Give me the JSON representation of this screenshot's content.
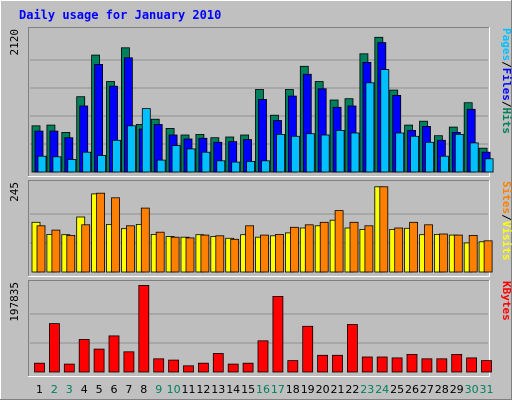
{
  "chart_data": {
    "type": "bar",
    "title": "Daily usage for January 2010",
    "days": [
      "1",
      "2",
      "3",
      "4",
      "5",
      "6",
      "7",
      "8",
      "9",
      "10",
      "11",
      "12",
      "13",
      "14",
      "15",
      "16",
      "17",
      "18",
      "19",
      "20",
      "21",
      "22",
      "23",
      "24",
      "25",
      "26",
      "27",
      "28",
      "29",
      "30",
      "31"
    ],
    "weekend_days": [
      "2",
      "3",
      "9",
      "10",
      "16",
      "17",
      "23",
      "24",
      "30",
      "31"
    ],
    "colors": {
      "hits": "#00805c",
      "files": "#0000ff",
      "pages": "#00c0ff",
      "visits": "#ffff00",
      "sites": "#ff8000",
      "kbytes": "#ff0000",
      "title": "#0000ff",
      "weekday_label": "#000000",
      "weekend_label": "#00805c",
      "background": "#c0c0c0",
      "plot_background": "#bebebe"
    },
    "panels": [
      {
        "id": "usage",
        "max_label": "2120",
        "ylim": [
          0,
          2120
        ],
        "legend": [
          {
            "text": "Hits",
            "color": "#00805c"
          },
          {
            "text": "Files",
            "color": "#0000ff"
          },
          {
            "text": "Pages",
            "color": "#00c0ff"
          }
        ],
        "series": [
          {
            "name": "Hits",
            "color": "#00805c",
            "values": [
              700,
              710,
              600,
              1140,
              1770,
              1370,
              1880,
              720,
              800,
              660,
              560,
              570,
              520,
              530,
              560,
              1250,
              860,
              1250,
              1600,
              1370,
              1090,
              1110,
              1790,
              2040,
              1240,
              710,
              770,
              550,
              680,
              1050,
              360
            ]
          },
          {
            "name": "Files",
            "color": "#0000ff",
            "values": [
              620,
              620,
              520,
              1000,
              1630,
              1300,
              1730,
              650,
              720,
              560,
              500,
              510,
              450,
              460,
              490,
              1100,
              780,
              1150,
              1480,
              1260,
              980,
              1000,
              1660,
              1960,
              1160,
              630,
              690,
              480,
              600,
              950,
              300
            ]
          },
          {
            "name": "Pages",
            "color": "#00c0ff",
            "values": [
              240,
              230,
              190,
              300,
              250,
              480,
              700,
              960,
              180,
              400,
              350,
              300,
              170,
              150,
              160,
              170,
              570,
              540,
              580,
              560,
              630,
              590,
              1350,
              1550,
              590,
              540,
              450,
              240,
              570,
              440,
              200
            ]
          }
        ]
      },
      {
        "id": "visits_sites",
        "max_label": "245",
        "ylim": [
          0,
          245
        ],
        "legend": [
          {
            "text": "Visits",
            "color": "#ffff00"
          },
          {
            "text": "Sites",
            "color": "#ff8000"
          }
        ],
        "series": [
          {
            "name": "Visits",
            "color": "#ffff00",
            "values": [
              140,
              106,
              105,
              155,
              220,
              134,
              122,
              134,
              106,
              100,
              98,
              105,
              100,
              95,
              105,
              98,
              102,
              110,
              124,
              130,
              146,
              124,
              120,
              240,
              120,
              123,
              105,
              106,
              104,
              82,
              85
            ]
          },
          {
            "name": "Sites",
            "color": "#ff8000",
            "values": [
              130,
              118,
              103,
              133,
              222,
              209,
              130,
              180,
              112,
              98,
              96,
              104,
              102,
              92,
              130,
              104,
              106,
              126,
              133,
              140,
              173,
              140,
              130,
              240,
              124,
              140,
              133,
              107,
              104,
              103,
              88
            ]
          }
        ]
      },
      {
        "id": "kbytes",
        "max_label": "197835",
        "ylim": [
          0,
          197835
        ],
        "legend": [
          {
            "text": "KBytes",
            "color": "#ff0000"
          }
        ],
        "series": [
          {
            "name": "KBytes",
            "color": "#ff0000",
            "values": [
              20000,
              110000,
              18000,
              74000,
              52000,
              82000,
              46000,
              197000,
              30000,
              27000,
              14000,
              20000,
              42000,
              18000,
              20000,
              71000,
              172000,
              26000,
              104000,
              38000,
              38000,
              108000,
              34000,
              34000,
              32000,
              40000,
              30000,
              30000,
              40000,
              32000,
              26000
            ]
          }
        ]
      }
    ]
  }
}
